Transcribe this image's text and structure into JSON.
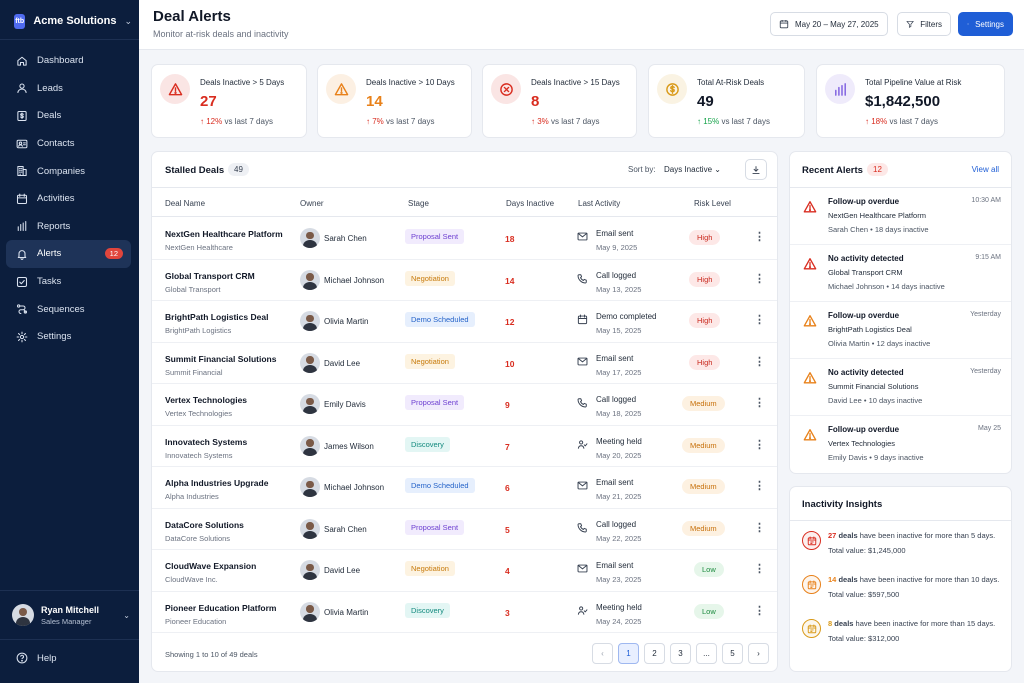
{
  "app": {
    "name": "Acme Solutions",
    "logo_text": "ftb"
  },
  "sidebar": {
    "items": [
      {
        "label": "Dashboard",
        "icon": "home-icon"
      },
      {
        "label": "Leads",
        "icon": "user-icon"
      },
      {
        "label": "Deals",
        "icon": "dollar-doc-icon"
      },
      {
        "label": "Contacts",
        "icon": "contact-card-icon"
      },
      {
        "label": "Companies",
        "icon": "building-icon"
      },
      {
        "label": "Activities",
        "icon": "calendar-icon"
      },
      {
        "label": "Reports",
        "icon": "bar-chart-icon"
      },
      {
        "label": "Alerts",
        "icon": "bell-icon",
        "badge": "12",
        "active": true
      },
      {
        "label": "Tasks",
        "icon": "checkbox-icon"
      },
      {
        "label": "Sequences",
        "icon": "sequence-icon"
      },
      {
        "label": "Settings",
        "icon": "gear-icon"
      }
    ],
    "user": {
      "name": "Ryan Mitchell",
      "role": "Sales Manager"
    },
    "help_label": "Help"
  },
  "header": {
    "title": "Deal Alerts",
    "subtitle": "Monitor at-risk deals and inactivity",
    "date_range": "May 20 – May 27, 2025",
    "filters_label": "Filters",
    "settings_label": "Settings"
  },
  "stats": [
    {
      "label": "Deals Inactive > 5 Days",
      "value": "27",
      "change": "12%",
      "suffix": "vs last 7 days",
      "trend": "up",
      "color": "#d92d20",
      "icon": "warning-triangle-icon"
    },
    {
      "label": "Deals Inactive > 10 Days",
      "value": "14",
      "change": "7%",
      "suffix": "vs last 7 days",
      "trend": "up",
      "color": "#e8811a",
      "icon": "warning-triangle-icon"
    },
    {
      "label": "Deals Inactive > 15 Days",
      "value": "8",
      "change": "3%",
      "suffix": "vs last 7 days",
      "trend": "up",
      "color": "#d92d20",
      "icon": "x-circle-icon"
    },
    {
      "label": "Total At-Risk Deals",
      "value": "49",
      "change": "15%",
      "suffix": "vs last 7 days",
      "trend": "up",
      "color": "#d99a1a",
      "icon": "dollar-circle-icon"
    },
    {
      "label": "Total Pipeline Value at Risk",
      "value": "$1,842,500",
      "change": "18%",
      "suffix": "vs last 7 days",
      "trend": "up",
      "color": "#7c5ce0",
      "icon": "bar-chart-icon"
    }
  ],
  "stalled": {
    "title": "Stalled Deals",
    "count": "49",
    "sort_label": "Sort by:",
    "sort_value": "Days Inactive",
    "columns": [
      "Deal Name",
      "Owner",
      "Stage",
      "Days Inactive",
      "Last Activity",
      "Risk Level"
    ],
    "rows": [
      {
        "name": "NextGen Healthcare Platform",
        "company": "NextGen Healthcare",
        "owner": "Sarah Chen",
        "stage": "Proposal Sent",
        "days": "18",
        "activity": "Email sent",
        "activity_icon": "mail-icon",
        "date": "May 9, 2025",
        "risk": "High"
      },
      {
        "name": "Global Transport CRM",
        "company": "Global Transport",
        "owner": "Michael Johnson",
        "stage": "Negotiation",
        "days": "14",
        "activity": "Call logged",
        "activity_icon": "phone-icon",
        "date": "May 13, 2025",
        "risk": "High"
      },
      {
        "name": "BrightPath Logistics Deal",
        "company": "BrightPath Logistics",
        "owner": "Olivia Martin",
        "stage": "Demo Scheduled",
        "days": "12",
        "activity": "Demo completed",
        "activity_icon": "calendar-icon",
        "date": "May 15, 2025",
        "risk": "High"
      },
      {
        "name": "Summit Financial Solutions",
        "company": "Summit Financial",
        "owner": "David Lee",
        "stage": "Negotiation",
        "days": "10",
        "activity": "Email sent",
        "activity_icon": "mail-icon",
        "date": "May 17, 2025",
        "risk": "High"
      },
      {
        "name": "Vertex Technologies",
        "company": "Vertex Technologies",
        "owner": "Emily Davis",
        "stage": "Proposal Sent",
        "days": "9",
        "activity": "Call logged",
        "activity_icon": "phone-icon",
        "date": "May 18, 2025",
        "risk": "Medium"
      },
      {
        "name": "Innovatech Systems",
        "company": "Innovatech Systems",
        "owner": "James Wilson",
        "stage": "Discovery",
        "days": "7",
        "activity": "Meeting held",
        "activity_icon": "meeting-icon",
        "date": "May 20, 2025",
        "risk": "Medium"
      },
      {
        "name": "Alpha Industries Upgrade",
        "company": "Alpha Industries",
        "owner": "Michael Johnson",
        "stage": "Demo Scheduled",
        "days": "6",
        "activity": "Email sent",
        "activity_icon": "mail-icon",
        "date": "May 21, 2025",
        "risk": "Medium"
      },
      {
        "name": "DataCore Solutions",
        "company": "DataCore Solutions",
        "owner": "Sarah Chen",
        "stage": "Proposal Sent",
        "days": "5",
        "activity": "Call logged",
        "activity_icon": "phone-icon",
        "date": "May 22, 2025",
        "risk": "Medium"
      },
      {
        "name": "CloudWave Expansion",
        "company": "CloudWave Inc.",
        "owner": "David Lee",
        "stage": "Negotiation",
        "days": "4",
        "activity": "Email sent",
        "activity_icon": "mail-icon",
        "date": "May 23, 2025",
        "risk": "Low"
      },
      {
        "name": "Pioneer Education Platform",
        "company": "Pioneer Education",
        "owner": "Olivia Martin",
        "stage": "Discovery",
        "days": "3",
        "activity": "Meeting held",
        "activity_icon": "meeting-icon",
        "date": "May 24, 2025",
        "risk": "Low"
      }
    ],
    "showing": "Showing 1 to 10 of 49 deals",
    "pages": [
      "1",
      "2",
      "3",
      "...",
      "5"
    ],
    "current_page": "1"
  },
  "recent_alerts": {
    "title": "Recent Alerts",
    "count": "12",
    "view_all": "View all",
    "items": [
      {
        "title": "Follow-up overdue",
        "deal": "NextGen Healthcare Platform",
        "meta": "Sarah Chen • 18 days inactive",
        "time": "10:30 AM",
        "severity": "red"
      },
      {
        "title": "No activity detected",
        "deal": "Global Transport CRM",
        "meta": "Michael Johnson • 14 days inactive",
        "time": "9:15 AM",
        "severity": "red"
      },
      {
        "title": "Follow-up overdue",
        "deal": "BrightPath Logistics Deal",
        "meta": "Olivia Martin • 12 days inactive",
        "time": "Yesterday",
        "severity": "orange"
      },
      {
        "title": "No activity detected",
        "deal": "Summit Financial Solutions",
        "meta": "David Lee • 10 days inactive",
        "time": "Yesterday",
        "severity": "orange"
      },
      {
        "title": "Follow-up overdue",
        "deal": "Vertex Technologies",
        "meta": "Emily Davis • 9 days inactive",
        "time": "May 25",
        "severity": "orange"
      }
    ]
  },
  "insights": {
    "title": "Inactivity Insights",
    "items": [
      {
        "count": "27",
        "unit": "deals",
        "text": "have been inactive for more than 5 days.",
        "value": "Total value: $1,245,000",
        "color": "#d92d20"
      },
      {
        "count": "14",
        "unit": "deals",
        "text": "have been inactive for more than 10 days.",
        "value": "Total value: $597,500",
        "color": "#e8811a"
      },
      {
        "count": "8",
        "unit": "deals",
        "text": "have been inactive for more than 15 days.",
        "value": "Total value: $312,000",
        "color": "#d99a1a"
      }
    ]
  }
}
